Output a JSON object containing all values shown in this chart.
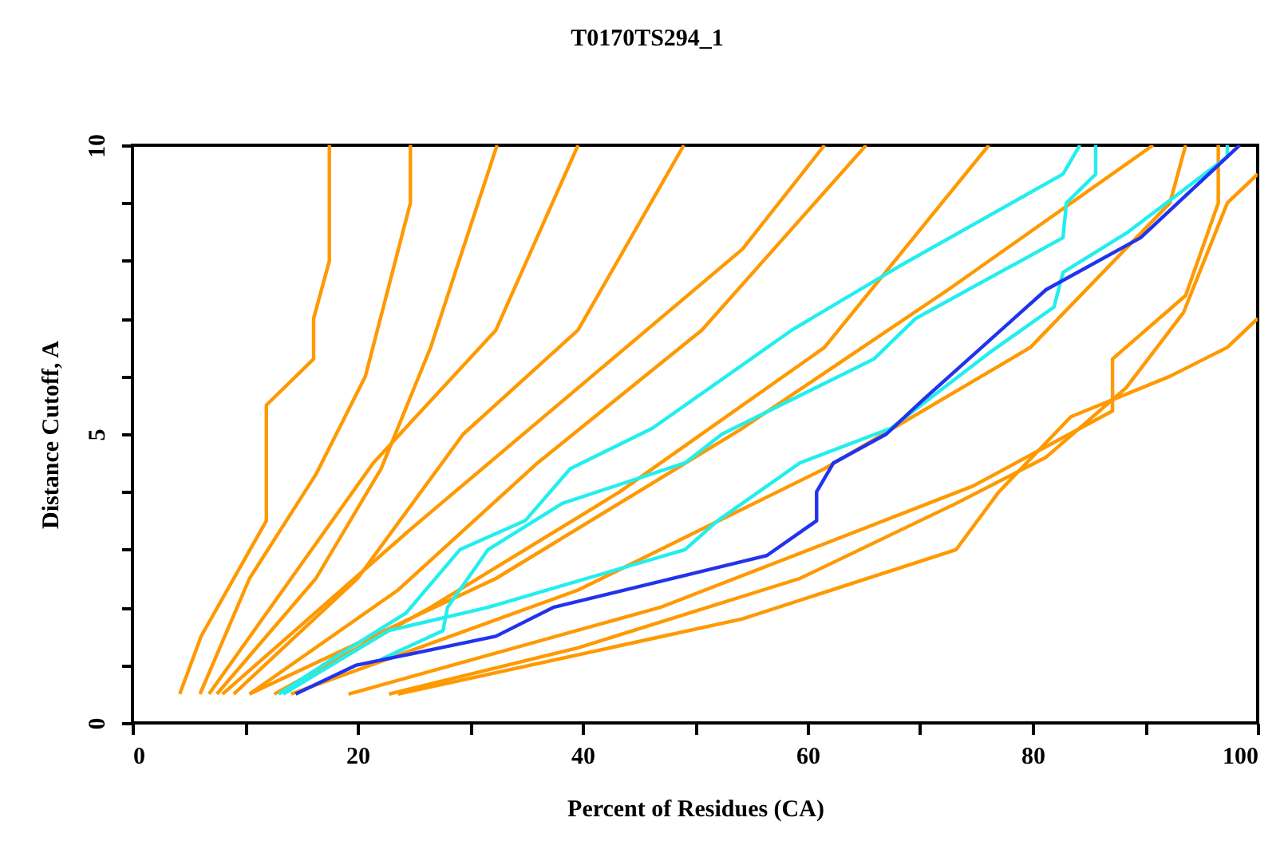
{
  "chart_data": {
    "type": "line",
    "title": "T0170TS294_1",
    "xlabel": "Percent of Residues (CA)",
    "ylabel": "Distance Cutoff, A",
    "xlim": [
      0,
      100
    ],
    "ylim": [
      0,
      10
    ],
    "xticks": [
      0,
      {
        "value": 10,
        "label": null
      },
      20,
      {
        "value": 30,
        "label": null
      },
      40,
      {
        "value": 50,
        "label": null
      },
      60,
      {
        "value": 70,
        "label": null
      },
      80,
      {
        "value": 90,
        "label": null
      },
      100
    ],
    "yticks": [
      0,
      {
        "value": 1,
        "label": null
      },
      {
        "value": 2,
        "label": null
      },
      {
        "value": 3,
        "label": null
      },
      {
        "value": 4,
        "label": null
      },
      5,
      {
        "value": 6,
        "label": null
      },
      {
        "value": 7,
        "label": null
      },
      {
        "value": 8,
        "label": null
      },
      {
        "value": 9,
        "label": null
      },
      10
    ],
    "grid": false,
    "legend": false,
    "marker": "none",
    "line_style": "solid",
    "series": [
      {
        "color": "#ff9900",
        "x": [
          4.2,
          6.1,
          11.9,
          11.9,
          16.1,
          16.1,
          17.5,
          17.5
        ],
        "values": [
          0.5,
          1.5,
          3.5,
          5.5,
          6.3,
          7.0,
          8.0,
          10
        ]
      },
      {
        "color": "#ff9900",
        "x": [
          6,
          10.4,
          16.3,
          20.7,
          24.7,
          24.7
        ],
        "values": [
          0.5,
          2.5,
          4.3,
          6.0,
          9.0,
          10
        ]
      },
      {
        "color": "#ff9900",
        "x": [
          7.5,
          16.3,
          22.1,
          26.5,
          32.4
        ],
        "values": [
          0.5,
          2.5,
          4.4,
          6.5,
          10
        ]
      },
      {
        "color": "#ff9900",
        "x": [
          6.8,
          14.1,
          21.4,
          32.3,
          39.6
        ],
        "values": [
          0.5,
          2.5,
          4.5,
          6.8,
          10
        ]
      },
      {
        "color": "#ff9900",
        "x": [
          9,
          20,
          29.4,
          39.6,
          49
        ],
        "values": [
          0.5,
          2.5,
          5,
          6.8,
          10
        ]
      },
      {
        "color": "#ff9900",
        "x": [
          8,
          25,
          39.6,
          54.2,
          61.5
        ],
        "values": [
          0.5,
          3.4,
          5.8,
          8.2,
          10
        ]
      },
      {
        "color": "#ff9900",
        "x": [
          10.4,
          23.6,
          36,
          50.6,
          65.2
        ],
        "values": [
          0.5,
          2.3,
          4.5,
          6.8,
          10
        ]
      },
      {
        "color": "#ff9900",
        "x": [
          12.6,
          26.5,
          43.3,
          61.5,
          76.1
        ],
        "values": [
          0.5,
          2.0,
          4.0,
          6.5,
          10
        ]
      },
      {
        "color": "#ff9900",
        "x": [
          10.4,
          32.3,
          54.2,
          72.5,
          90.7
        ],
        "values": [
          0.5,
          2.5,
          5.1,
          7.5,
          10
        ]
      },
      {
        "color": "#ff9900",
        "x": [
          14.1,
          39.6,
          61.5,
          79.8,
          92.2,
          93.6
        ],
        "values": [
          0.5,
          2.3,
          4.4,
          6.5,
          9.0,
          10
        ]
      },
      {
        "color": "#ff9900",
        "x": [
          19.2,
          46.9,
          61.5,
          74.7,
          87.1,
          87.1,
          93.6,
          96.5,
          96.5
        ],
        "values": [
          0.5,
          2.0,
          3.1,
          4.1,
          5.4,
          6.3,
          7.4,
          9.0,
          10
        ]
      },
      {
        "color": "#ff9900",
        "x": [
          22.8,
          39.6,
          59.3,
          73.2,
          81.2,
          88.3,
          93.4,
          97.3,
          100
        ],
        "values": [
          0.5,
          1.3,
          2.5,
          3.8,
          4.6,
          5.8,
          7.1,
          9.0,
          9.5
        ]
      },
      {
        "color": "#ff9900",
        "x": [
          23.6,
          54.2,
          73.2,
          77,
          83.4,
          92.2,
          97.3,
          100
        ],
        "values": [
          0.5,
          1.8,
          3.0,
          4.0,
          5.3,
          6.0,
          6.5,
          7.0
        ]
      },
      {
        "color": "#22eeee",
        "x": [
          13,
          17.7,
          24.3,
          29.1,
          34.9,
          38.9,
          46.2,
          58.6,
          68.1,
          82.7,
          84.2
        ],
        "values": [
          0.5,
          1.1,
          1.9,
          3.0,
          3.5,
          4.4,
          5.1,
          6.8,
          7.9,
          9.5,
          10
        ]
      },
      {
        "color": "#22eeee",
        "x": [
          22.1,
          27.6,
          28,
          31.6,
          38.2,
          49.1,
          52.4,
          65.9,
          69.6,
          82.7,
          83,
          85.6,
          85.6
        ],
        "values": [
          1.1,
          1.6,
          2.0,
          3.0,
          3.8,
          4.5,
          5.0,
          6.3,
          7.0,
          8.4,
          9.0,
          9.5,
          10
        ]
      },
      {
        "color": "#22eeee",
        "x": [
          13.4,
          22.8,
          31.6,
          49.1,
          52,
          59.3,
          67.4,
          76.1,
          81.9,
          82.7,
          88.5,
          97.3,
          97.3
        ],
        "values": [
          0.5,
          1.6,
          2.0,
          3.0,
          3.5,
          4.5,
          5.1,
          6.4,
          7.2,
          7.8,
          8.5,
          9.8,
          10
        ]
      },
      {
        "color": "#2233ee",
        "x": [
          14.5,
          19.9,
          32.3,
          37.4,
          56.4,
          60.8,
          60.8,
          62.3,
          67,
          70.3,
          81.2,
          89.6,
          98.4
        ],
        "values": [
          0.5,
          1.0,
          1.5,
          2.0,
          2.9,
          3.5,
          4.0,
          4.5,
          5.0,
          5.6,
          7.5,
          8.4,
          10
        ]
      }
    ]
  }
}
